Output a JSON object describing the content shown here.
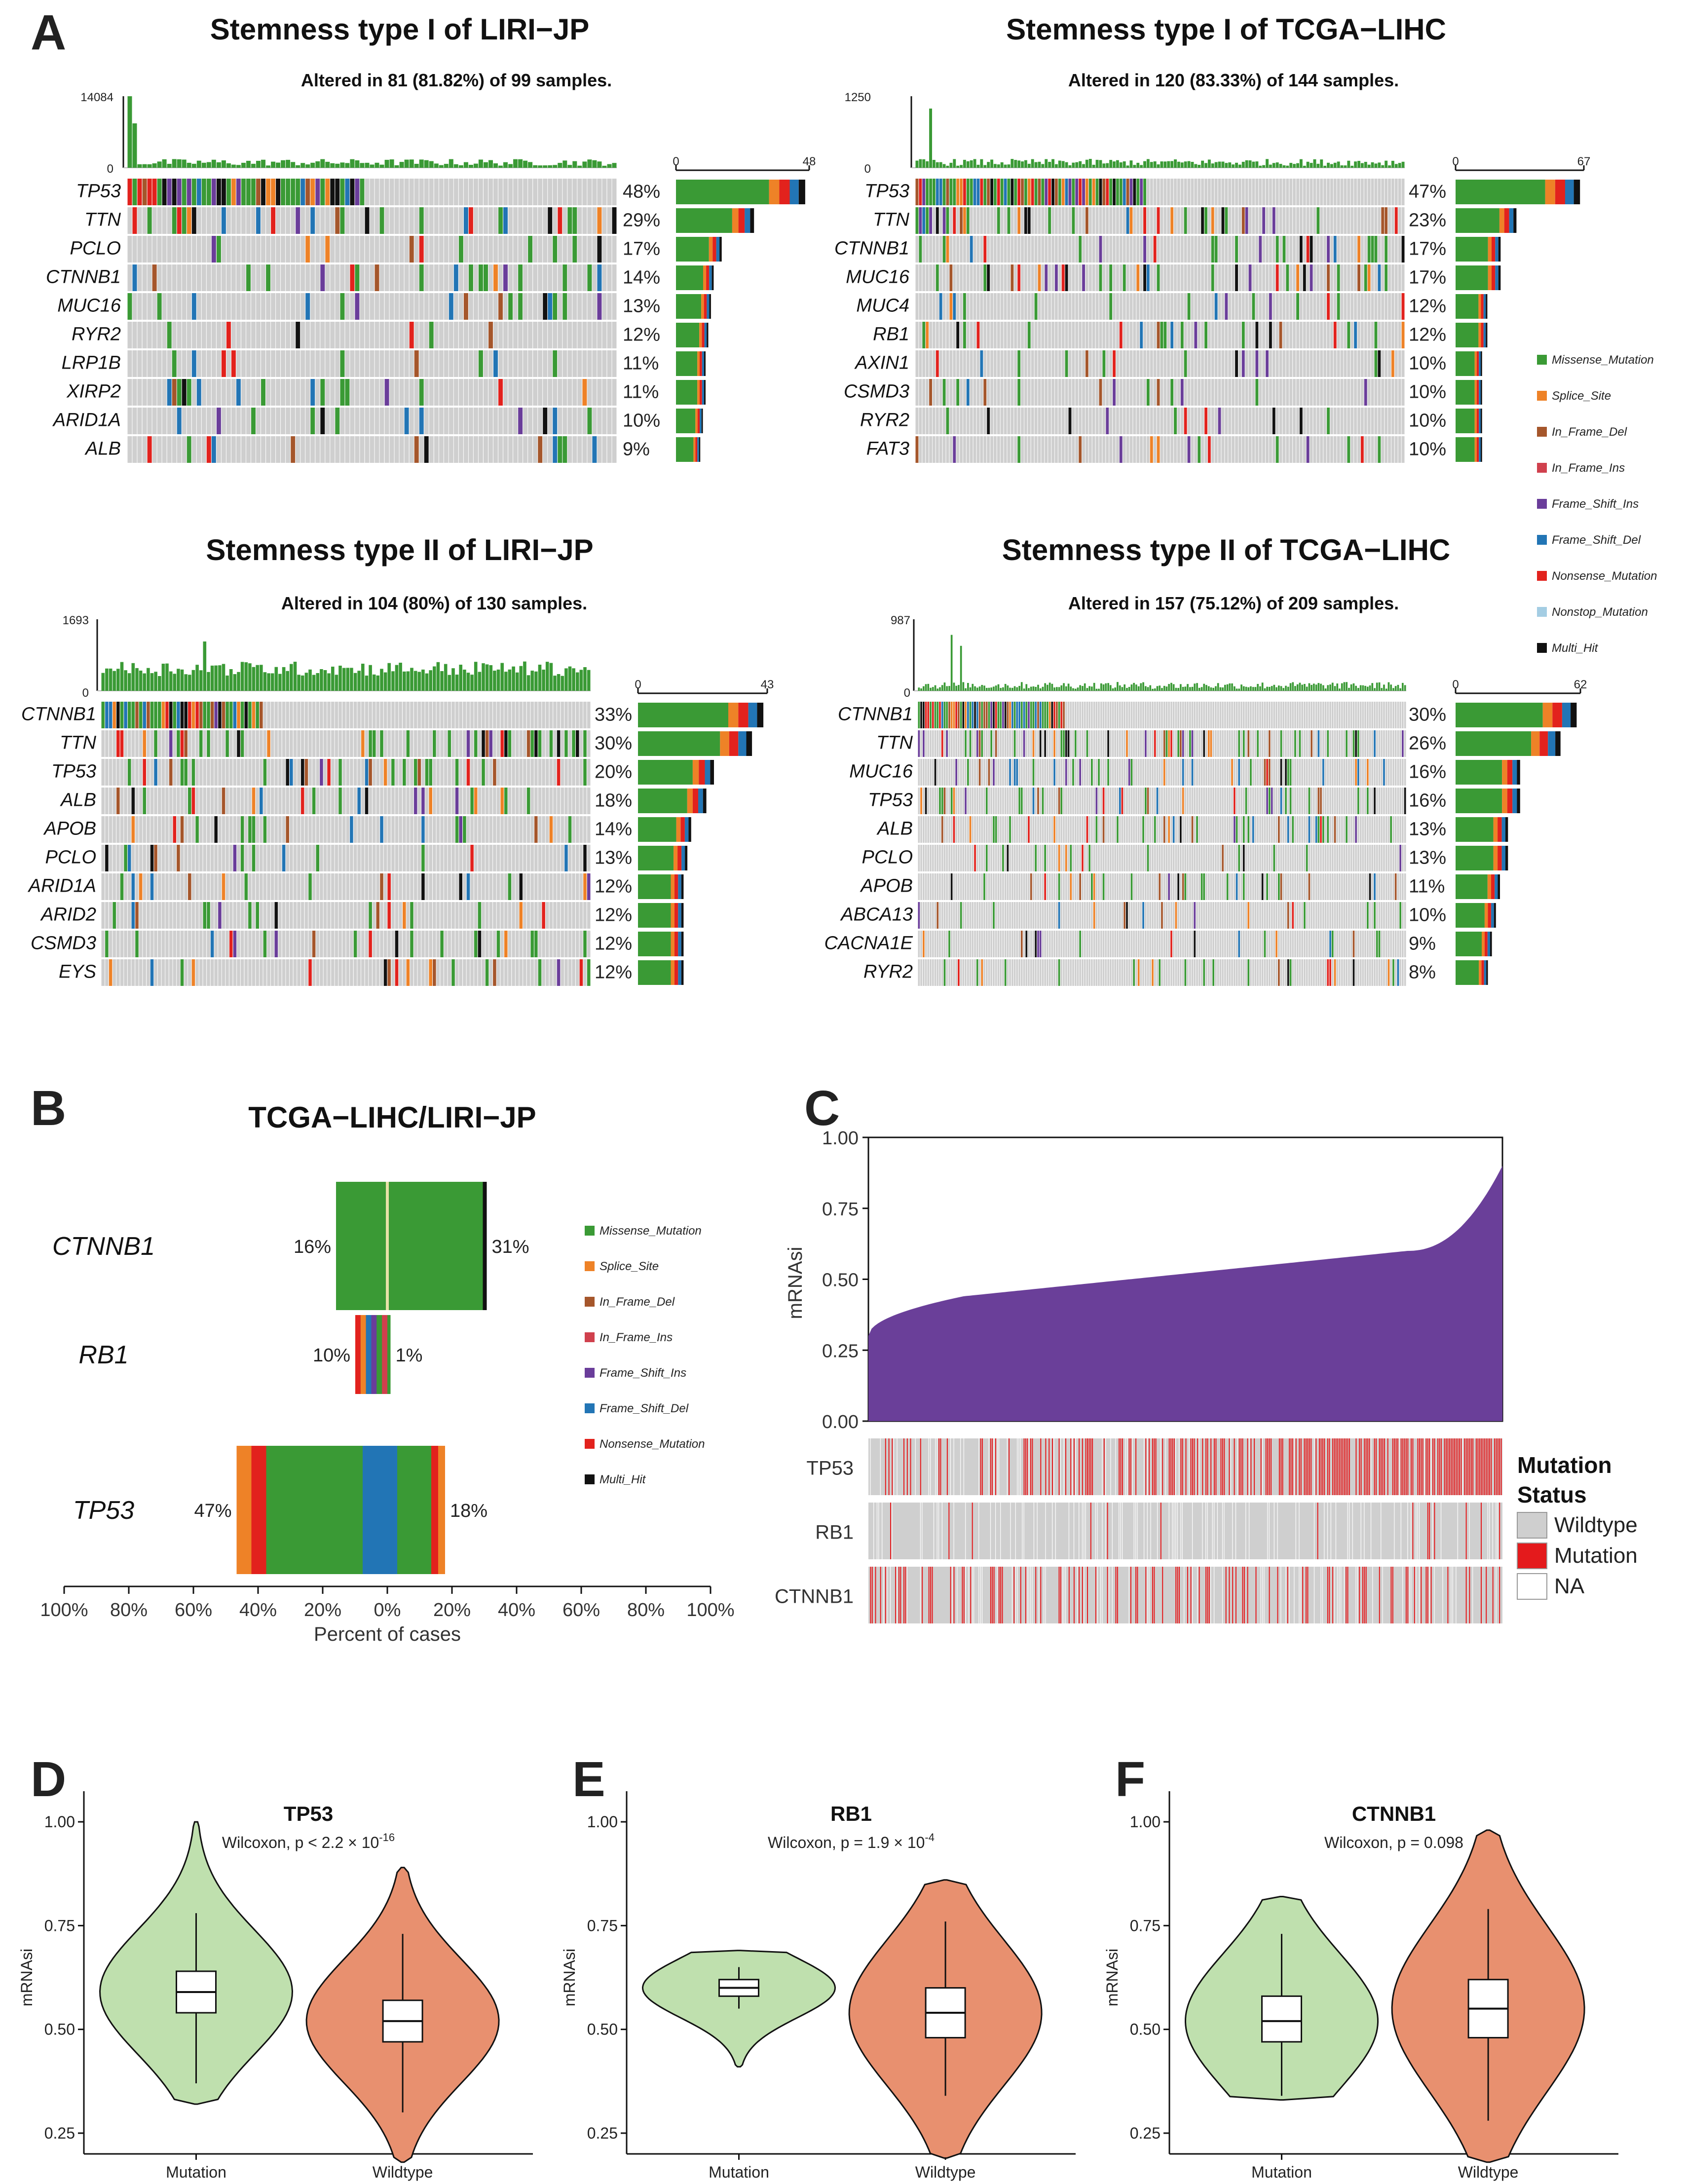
{
  "colors": {
    "Missense_Mutation": "#3a9a35",
    "Splice_Site": "#ee8227",
    "In_Frame_Del": "#a5562b",
    "In_Frame_Ins": "#d0404d",
    "Frame_Shift_Ins": "#6a3d9a",
    "Frame_Shift_Del": "#2275b5",
    "Nonsense_Mutation": "#e2221d",
    "Nonstop_Mutation": "#a4cde3",
    "Multi_Hit": "#111111",
    "wildtype_grey": "#cfcfcf",
    "mutation_red": "#e41a1c",
    "violin_mutation": "#bfe0ae",
    "violin_wildtype": "#e8906f",
    "area_purple": "#6a3f99"
  },
  "panel_letters": [
    "A",
    "B",
    "C",
    "D",
    "E",
    "F"
  ],
  "chart_data": [
    {
      "type": "oncoplot",
      "title": "Stemness type I of LIRI−JP",
      "subtitle": "Altered in 81 (81.82%) of 99 samples.",
      "tmb_max": "14084",
      "tmb_min": "0",
      "side_min": "0",
      "side_max": "48",
      "genes": [
        "TP53",
        "TTN",
        "PCLO",
        "CTNNB1",
        "MUC16",
        "RYR2",
        "LRP1B",
        "XIRP2",
        "ARID1A",
        "ALB"
      ],
      "percents": [
        "48%",
        "29%",
        "17%",
        "14%",
        "13%",
        "12%",
        "11%",
        "11%",
        "10%",
        "9%"
      ]
    },
    {
      "type": "oncoplot",
      "title": "Stemness type I of TCGA−LIHC",
      "subtitle": "Altered in 120 (83.33%) of 144 samples.",
      "tmb_max": "1250",
      "tmb_min": "0",
      "side_min": "0",
      "side_max": "67",
      "genes": [
        "TP53",
        "TTN",
        "CTNNB1",
        "MUC16",
        "MUC4",
        "RB1",
        "AXIN1",
        "CSMD3",
        "RYR2",
        "FAT3"
      ],
      "percents": [
        "47%",
        "23%",
        "17%",
        "17%",
        "12%",
        "12%",
        "10%",
        "10%",
        "10%",
        "10%"
      ]
    },
    {
      "type": "oncoplot",
      "title": "Stemness type II of LIRI−JP",
      "subtitle": "Altered in 104 (80%) of 130 samples.",
      "tmb_max": "1693",
      "tmb_min": "0",
      "side_min": "0",
      "side_max": "43",
      "genes": [
        "CTNNB1",
        "TTN",
        "TP53",
        "ALB",
        "APOB",
        "PCLO",
        "ARID1A",
        "ARID2",
        "CSMD3",
        "EYS"
      ],
      "percents": [
        "33%",
        "30%",
        "20%",
        "18%",
        "14%",
        "13%",
        "12%",
        "12%",
        "12%",
        "12%"
      ]
    },
    {
      "type": "oncoplot",
      "title": "Stemness type II of TCGA−LIHC",
      "subtitle": "Altered in 157 (75.12%) of 209 samples.",
      "tmb_max": "987",
      "tmb_min": "0",
      "side_min": "0",
      "side_max": "62",
      "genes": [
        "CTNNB1",
        "TTN",
        "MUC16",
        "TP53",
        "ALB",
        "PCLO",
        "APOB",
        "ABCA13",
        "CACNA1E",
        "RYR2"
      ],
      "percents": [
        "30%",
        "26%",
        "16%",
        "16%",
        "13%",
        "13%",
        "11%",
        "10%",
        "9%",
        "8%"
      ]
    },
    {
      "type": "coBarplot",
      "title": "TCGA−LIHC/LIRI−JP",
      "xlabel": "Percent of cases",
      "xticks": [
        "100%",
        "80%",
        "60%",
        "40%",
        "20%",
        "0%",
        "20%",
        "40%",
        "60%",
        "80%",
        "100%"
      ],
      "genes": [
        {
          "name": "CTNNB1",
          "left_label": "16%",
          "right_label": "31%",
          "left": 16,
          "right": 31
        },
        {
          "name": "RB1",
          "left_label": "10%",
          "right_label": "1%",
          "left": 10,
          "right": 1
        },
        {
          "name": "TP53",
          "left_label": "47%",
          "right_label": "18%",
          "left": 47,
          "right": 18
        }
      ]
    },
    {
      "type": "area",
      "ylabel": "mRNAsi",
      "yticks": [
        "1.00",
        "0.75",
        "0.50",
        "0.25",
        "0.00"
      ],
      "ylim": [
        0,
        1
      ],
      "curve": {
        "min": 0.3,
        "mid": 0.5,
        "q75": 0.6,
        "max": 0.9
      },
      "tracks": [
        "TP53",
        "RB1",
        "CTNNB1"
      ],
      "legend_title": "Mutation Status",
      "legend_title_line1": "Mutation",
      "legend_title_line2": "Status",
      "legend_items": [
        "Wildtype",
        "Mutation",
        "NA"
      ]
    },
    {
      "type": "violin",
      "title": "TP53",
      "test_prefix": "Wilcoxon, p < 2.2 × 10",
      "test_exp": "-16",
      "ylabel": "mRNAsi",
      "categories": [
        "Mutation",
        "Wildtype"
      ],
      "yticks": [
        "1.00",
        "0.75",
        "0.50",
        "0.25"
      ],
      "ylim": [
        0.2,
        1.05
      ],
      "medians": [
        0.59,
        0.52
      ],
      "q1": [
        0.54,
        0.47
      ],
      "q3": [
        0.64,
        0.57
      ],
      "whisker_low": [
        0.37,
        0.3
      ],
      "whisker_high": [
        0.78,
        0.73
      ],
      "range_low": [
        0.32,
        0.18
      ],
      "range_high": [
        1.0,
        0.89
      ]
    },
    {
      "type": "violin",
      "title": "RB1",
      "test_prefix": "Wilcoxon, p = 1.9 × 10",
      "test_exp": "-4",
      "ylabel": "mRNAsi",
      "categories": [
        "Mutation",
        "Wildtype"
      ],
      "yticks": [
        "1.00",
        "0.75",
        "0.50",
        "0.25"
      ],
      "ylim": [
        0.2,
        1.05
      ],
      "medians": [
        0.6,
        0.54
      ],
      "q1": [
        0.58,
        0.48
      ],
      "q3": [
        0.62,
        0.6
      ],
      "whisker_low": [
        0.55,
        0.34
      ],
      "whisker_high": [
        0.65,
        0.76
      ],
      "range_low": [
        0.41,
        0.19
      ],
      "range_high": [
        0.69,
        0.86
      ]
    },
    {
      "type": "violin",
      "title": "CTNNB1",
      "test_prefix": "Wilcoxon, p = 0.098",
      "test_exp": "",
      "ylabel": "mRNAsi",
      "categories": [
        "Mutation",
        "Wildtype"
      ],
      "yticks": [
        "1.00",
        "0.75",
        "0.50",
        "0.25"
      ],
      "ylim": [
        0.2,
        1.05
      ],
      "medians": [
        0.52,
        0.55
      ],
      "q1": [
        0.47,
        0.48
      ],
      "q3": [
        0.58,
        0.62
      ],
      "whisker_low": [
        0.34,
        0.28
      ],
      "whisker_high": [
        0.73,
        0.79
      ],
      "range_low": [
        0.33,
        0.18
      ],
      "range_high": [
        0.82,
        0.98
      ]
    }
  ],
  "legend_A": {
    "items": [
      "Missense_Mutation",
      "Splice_Site",
      "In_Frame_Del",
      "In_Frame_Ins",
      "Frame_Shift_Ins",
      "Frame_Shift_Del",
      "Nonsense_Mutation",
      "Nonstop_Mutation",
      "Multi_Hit"
    ]
  },
  "legend_B": {
    "items": [
      "Missense_Mutation",
      "Splice_Site",
      "In_Frame_Del",
      "In_Frame_Ins",
      "Frame_Shift_Ins",
      "Frame_Shift_Del",
      "Nonsense_Mutation",
      "Multi_Hit"
    ]
  }
}
